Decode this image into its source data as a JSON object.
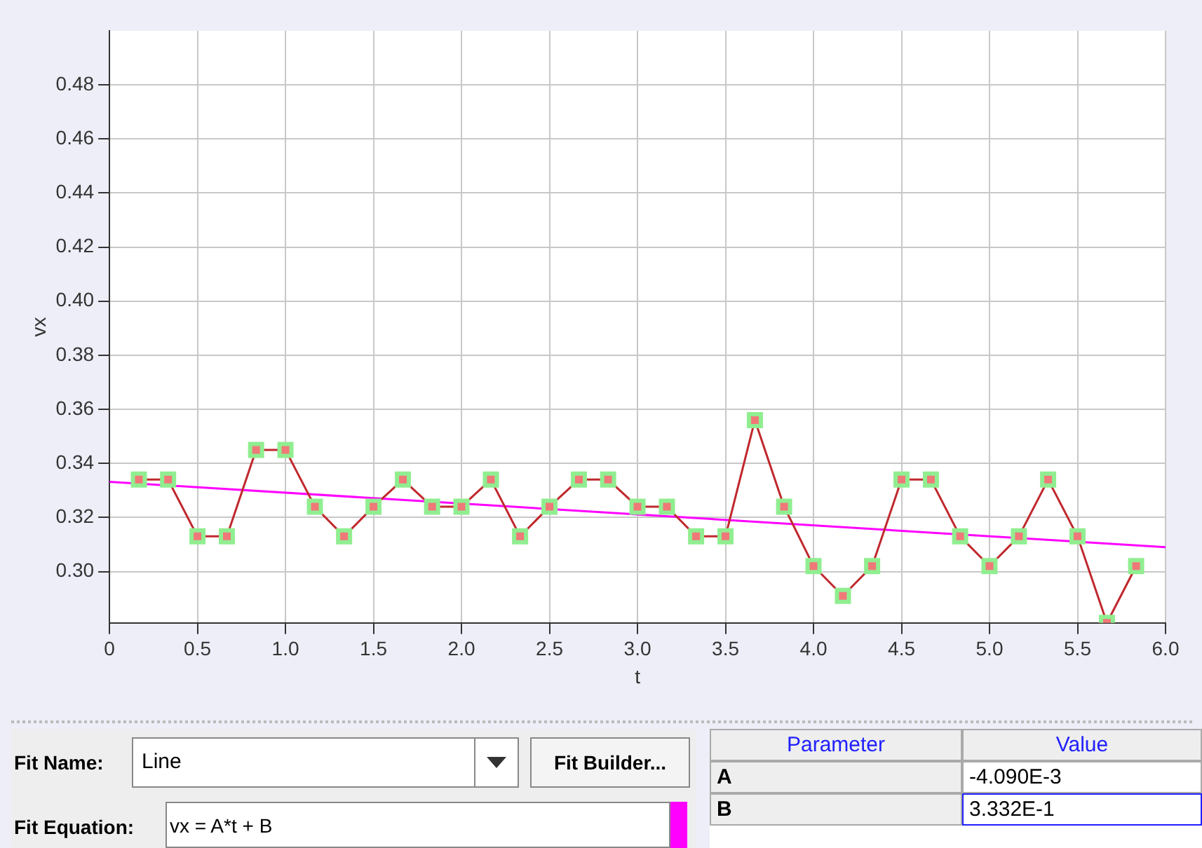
{
  "chart_data": {
    "type": "line",
    "xlabel": "t",
    "ylabel": "vx",
    "xlim": [
      0,
      6
    ],
    "ylim": [
      0.281,
      0.5
    ],
    "xticks": [
      0,
      0.5,
      {
        "value": 1,
        "label": "1.0"
      },
      1.5,
      {
        "value": 2,
        "label": "2.0"
      },
      2.5,
      {
        "value": 3,
        "label": "3.0"
      },
      3.5,
      {
        "value": 4,
        "label": "4.0"
      },
      4.5,
      {
        "value": 5,
        "label": "5.0"
      },
      5.5,
      {
        "value": 6,
        "label": "6.0"
      }
    ],
    "yticks": [
      {
        "value": 0.3,
        "label": "0.30"
      },
      0.32,
      0.34,
      0.36,
      0.38,
      {
        "value": 0.4,
        "label": "0.40"
      },
      0.42,
      0.44,
      0.46,
      0.48
    ],
    "grid": true,
    "legend": false,
    "series": [
      {
        "color": "#c0282d",
        "marker": "square",
        "x": [
          0.167,
          0.333,
          0.5,
          0.667,
          0.833,
          1.0,
          1.167,
          1.333,
          1.5,
          1.667,
          1.833,
          2.0,
          2.167,
          2.333,
          2.5,
          2.667,
          2.833,
          3.0,
          3.167,
          3.333,
          3.5,
          3.667,
          3.833,
          4.0,
          4.167,
          4.333,
          4.5,
          4.667,
          4.833,
          5.0,
          5.167,
          5.333,
          5.5,
          5.667,
          5.833
        ],
        "values": [
          0.334,
          0.334,
          0.313,
          0.313,
          0.345,
          0.345,
          0.324,
          0.313,
          0.324,
          0.334,
          0.324,
          0.324,
          0.334,
          0.313,
          0.324,
          0.334,
          0.334,
          0.324,
          0.324,
          0.313,
          0.313,
          0.356,
          0.324,
          0.302,
          0.291,
          0.302,
          0.334,
          0.334,
          0.313,
          0.302,
          0.313,
          0.334,
          0.313,
          0.281,
          0.302
        ]
      },
      {
        "color": "#ff00ff",
        "marker": "none",
        "x": [
          0,
          6
        ],
        "values": [
          0.3332,
          0.309
        ]
      }
    ],
    "annotations": [
      "Fit Name:",
      "Line",
      "Fit Builder...",
      "Fit Equation:",
      "vx = A*t + B",
      "Parameter",
      "Value",
      "A",
      "-4.090E-3",
      "B",
      "3.332E-1"
    ]
  }
}
